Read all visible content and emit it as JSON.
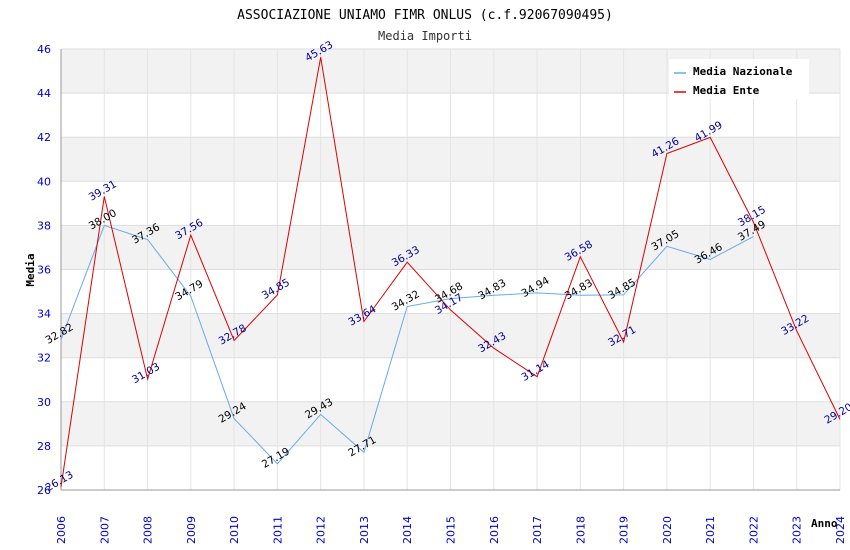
{
  "chart_data": {
    "type": "line",
    "title": "ASSOCIAZIONE UNIAMO FIMR ONLUS (c.f.92067090495)",
    "subtitle": "Media Importi",
    "xlabel": "Anno",
    "ylabel": "Media",
    "ylim": [
      26,
      46
    ],
    "yticks": [
      "26",
      "28",
      "30",
      "32",
      "34",
      "36",
      "38",
      "40",
      "42",
      "44",
      "46"
    ],
    "categories": [
      "2006",
      "2007",
      "2008",
      "2009",
      "2010",
      "2011",
      "2012",
      "2013",
      "2014",
      "2015",
      "2016",
      "2017",
      "2018",
      "2019",
      "2020",
      "2021",
      "2022",
      "2023",
      "2024"
    ],
    "grid": true,
    "legend_position": "top-right",
    "series": [
      {
        "name": "Media Nazionale",
        "color": "#66aaee",
        "values": [
          32.82,
          38.0,
          37.36,
          34.79,
          29.24,
          27.19,
          29.43,
          27.71,
          34.32,
          34.68,
          34.83,
          34.94,
          34.83,
          34.85,
          37.05,
          36.46,
          37.49,
          null,
          null
        ],
        "labels": [
          "32.82",
          "38.00",
          "37.36",
          "34.79",
          "29.24",
          "27.19",
          "29.43",
          "27.71",
          "34.32",
          "34.68",
          "34.83",
          "34.94",
          "34.83",
          "34.85",
          "37.05",
          "36.46",
          "37.49",
          null,
          null
        ]
      },
      {
        "name": "Media Ente",
        "color": "#dd0000",
        "values": [
          26.13,
          39.31,
          31.03,
          37.56,
          32.78,
          34.85,
          45.63,
          33.64,
          36.33,
          34.17,
          32.43,
          31.14,
          36.58,
          32.71,
          41.26,
          41.99,
          38.15,
          33.22,
          29.2
        ],
        "labels": [
          "26.13",
          "39.31",
          "31.03",
          "37.56",
          "32.78",
          "34.85",
          "45.63",
          "33.64",
          "36.33",
          "34.17",
          "32.43",
          "31.14",
          "36.58",
          "32.71",
          "41.26",
          "41.99",
          "38.15",
          "33.22",
          "29.20"
        ]
      }
    ]
  }
}
